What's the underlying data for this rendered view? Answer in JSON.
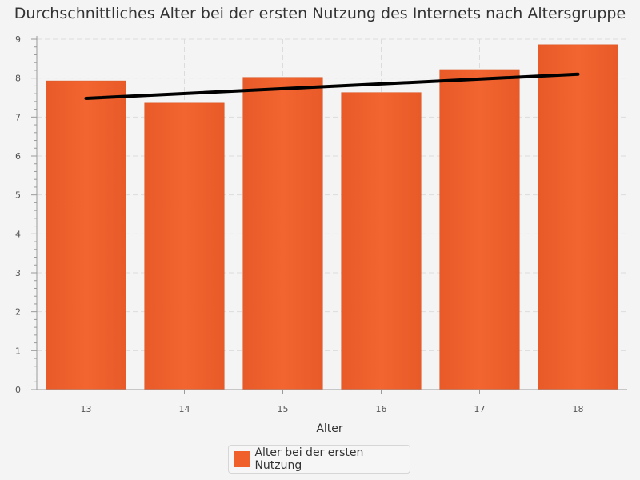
{
  "chart_data": {
    "type": "bar",
    "title": "Durchschnittliches Alter bei der ersten Nutzung des Internets nach Altersgruppe",
    "xlabel": "Alter",
    "ylabel": "",
    "categories": [
      "13",
      "14",
      "15",
      "16",
      "17",
      "18"
    ],
    "series": [
      {
        "name": "Alter bei der ersten Nutzung",
        "values": [
          7.93,
          7.36,
          8.02,
          7.63,
          8.22,
          8.86
        ],
        "color": "#f0602a"
      }
    ],
    "trendline": {
      "start": 7.48,
      "end": 8.1,
      "color": "#000000"
    },
    "ylim": [
      0,
      9
    ],
    "yticks": [
      0,
      1,
      2,
      3,
      4,
      5,
      6,
      7,
      8,
      9
    ],
    "grid": true,
    "legend_position": "bottom"
  }
}
